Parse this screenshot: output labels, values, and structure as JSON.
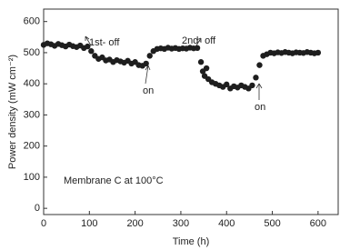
{
  "chart_data": {
    "type": "scatter",
    "x_label": "Time (h)",
    "y_label": "Power density (mW cm⁻²)",
    "annotations": [
      "1st- off",
      "on",
      "2nd- off",
      "on",
      "Membrane C at 100°C"
    ],
    "xlim": [
      0,
      644
    ],
    "ylim": [
      -20,
      640
    ],
    "xticks": [
      0,
      100,
      200,
      300,
      400,
      500,
      600
    ],
    "yticks": [
      0,
      100,
      200,
      300,
      400,
      500,
      600
    ],
    "series": [
      {
        "color": "#1e1e1e",
        "x": [
          0,
          8,
          16,
          24,
          32,
          40,
          48,
          56,
          64,
          72,
          80,
          88,
          96,
          104,
          112,
          120,
          128,
          136,
          144,
          152,
          160,
          168,
          176,
          184,
          192,
          200,
          208,
          216,
          224,
          232,
          240,
          248,
          256,
          264,
          272,
          280,
          288,
          296,
          304,
          312,
          320,
          328,
          336,
          344,
          348,
          352,
          356,
          360,
          368,
          376,
          384,
          392,
          400,
          408,
          416,
          424,
          432,
          440,
          448,
          456,
          464,
          472,
          480,
          488,
          496,
          504,
          512,
          520,
          528,
          536,
          544,
          552,
          560,
          568,
          576,
          584,
          592,
          600
        ],
        "values": [
          525,
          530,
          527,
          522,
          528,
          524,
          520,
          526,
          521,
          518,
          523,
          515,
          520,
          505,
          490,
          480,
          485,
          475,
          478,
          470,
          476,
          472,
          468,
          474,
          465,
          470,
          460,
          458,
          465,
          490,
          505,
          512,
          514,
          512,
          516,
          513,
          515,
          512,
          514,
          513,
          516,
          514,
          515,
          470,
          440,
          425,
          450,
          415,
          405,
          400,
          395,
          390,
          398,
          385,
          392,
          388,
          395,
          390,
          385,
          395,
          420,
          460,
          490,
          495,
          500,
          498,
          501,
          499,
          502,
          500,
          498,
          501,
          500,
          499,
          502,
          500,
          498,
          500
        ]
      }
    ]
  }
}
